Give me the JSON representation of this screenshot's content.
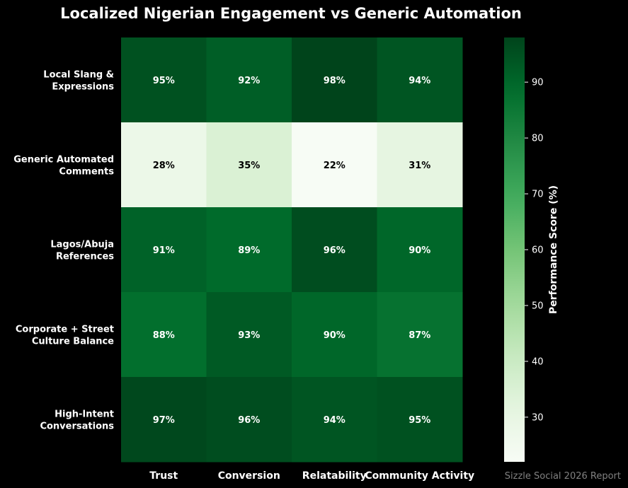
{
  "chart_data": {
    "type": "heatmap",
    "title": "Localized Nigerian Engagement vs Generic Automation",
    "rows": [
      "Local Slang &\nExpressions",
      "Generic Automated\nComments",
      "Lagos/Abuja\nReferences",
      "Corporate + Street\nCulture Balance",
      "High-Intent\nConversations"
    ],
    "columns": [
      "Trust",
      "Conversion",
      "Relatability",
      "Community Activity"
    ],
    "values": [
      [
        95,
        92,
        98,
        94
      ],
      [
        28,
        35,
        22,
        31
      ],
      [
        91,
        89,
        96,
        90
      ],
      [
        88,
        93,
        90,
        87
      ],
      [
        97,
        96,
        94,
        95
      ]
    ],
    "value_suffix": "%",
    "colormap": "Greens",
    "vmin": 22,
    "vmax": 98,
    "colorbar": {
      "label": "Performance Score (%)",
      "ticks": [
        30,
        40,
        50,
        60,
        70,
        80,
        90
      ]
    }
  },
  "footer": {
    "source": "Sizzle Social 2026 Report"
  },
  "colors": {
    "background": "#000000",
    "text": "#ffffff",
    "source_text": "#808080"
  }
}
